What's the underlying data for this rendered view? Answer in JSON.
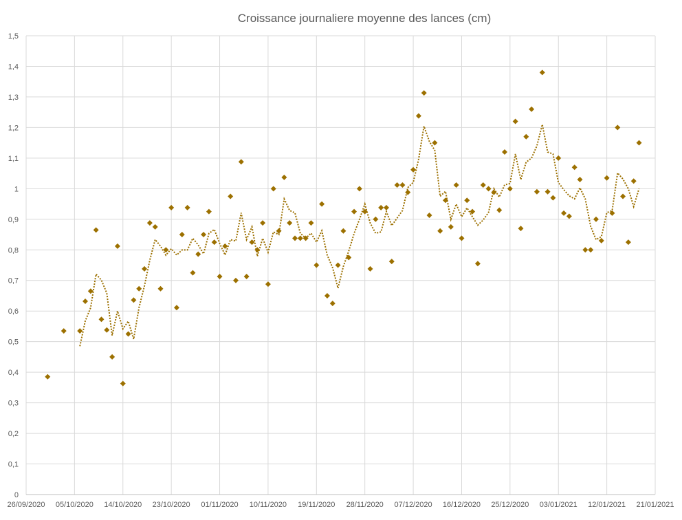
{
  "chart_data": {
    "type": "scatter",
    "title": "Croissance journaliere moyenne des lances (cm)",
    "xlabel": "",
    "ylabel": "",
    "xlim": [
      "2020-09-26",
      "2021-01-21"
    ],
    "ylim": [
      0,
      1.5
    ],
    "x_ticks": [
      "26/09/2020",
      "05/10/2020",
      "14/10/2020",
      "23/10/2020",
      "01/11/2020",
      "10/11/2020",
      "19/11/2020",
      "28/11/2020",
      "07/12/2020",
      "16/12/2020",
      "25/12/2020",
      "03/01/2021",
      "12/01/2021",
      "21/01/2021"
    ],
    "y_ticks": [
      "0",
      "0,1",
      "0,2",
      "0,3",
      "0,4",
      "0,5",
      "0,6",
      "0,7",
      "0,8",
      "0,9",
      "1",
      "1,1",
      "1,2",
      "1,3",
      "1,4",
      "1,5"
    ],
    "grid": true,
    "legend": "none",
    "marker_color": "#9C7000",
    "trendline": {
      "type": "moving average",
      "style": "dotted",
      "color": "#9C7000"
    },
    "points": [
      [
        "2020-09-30",
        0.385
      ],
      [
        "2020-10-03",
        0.535
      ],
      [
        "2020-10-06",
        0.535
      ],
      [
        "2020-10-07",
        0.632
      ],
      [
        "2020-10-08",
        0.665
      ],
      [
        "2020-10-09",
        0.865
      ],
      [
        "2020-10-10",
        0.573
      ],
      [
        "2020-10-11",
        0.538
      ],
      [
        "2020-10-12",
        0.45
      ],
      [
        "2020-10-13",
        0.812
      ],
      [
        "2020-10-14",
        0.363
      ],
      [
        "2020-10-15",
        0.525
      ],
      [
        "2020-10-16",
        0.636
      ],
      [
        "2020-10-17",
        0.673
      ],
      [
        "2020-10-18",
        0.738
      ],
      [
        "2020-10-19",
        0.888
      ],
      [
        "2020-10-20",
        0.875
      ],
      [
        "2020-10-21",
        0.673
      ],
      [
        "2020-10-22",
        0.8
      ],
      [
        "2020-10-23",
        0.938
      ],
      [
        "2020-10-24",
        0.611
      ],
      [
        "2020-10-25",
        0.85
      ],
      [
        "2020-10-26",
        0.938
      ],
      [
        "2020-10-27",
        0.725
      ],
      [
        "2020-10-28",
        0.786
      ],
      [
        "2020-10-29",
        0.85
      ],
      [
        "2020-10-30",
        0.925
      ],
      [
        "2020-10-31",
        0.825
      ],
      [
        "2020-11-01",
        0.713
      ],
      [
        "2020-11-02",
        0.812
      ],
      [
        "2020-11-03",
        0.975
      ],
      [
        "2020-11-04",
        0.7
      ],
      [
        "2020-11-05",
        1.088
      ],
      [
        "2020-11-06",
        0.713
      ],
      [
        "2020-11-07",
        0.825
      ],
      [
        "2020-11-08",
        0.8
      ],
      [
        "2020-11-09",
        0.888
      ],
      [
        "2020-11-10",
        0.688
      ],
      [
        "2020-11-11",
        1.0
      ],
      [
        "2020-11-12",
        0.862
      ],
      [
        "2020-11-13",
        1.037
      ],
      [
        "2020-11-14",
        0.888
      ],
      [
        "2020-11-15",
        0.838
      ],
      [
        "2020-11-16",
        0.838
      ],
      [
        "2020-11-17",
        0.838
      ],
      [
        "2020-11-18",
        0.888
      ],
      [
        "2020-11-19",
        0.75
      ],
      [
        "2020-11-20",
        0.95
      ],
      [
        "2020-11-21",
        0.65
      ],
      [
        "2020-11-22",
        0.625
      ],
      [
        "2020-11-23",
        0.75
      ],
      [
        "2020-11-24",
        0.862
      ],
      [
        "2020-11-25",
        0.775
      ],
      [
        "2020-11-26",
        0.925
      ],
      [
        "2020-11-27",
        1.0
      ],
      [
        "2020-11-28",
        0.925
      ],
      [
        "2020-11-29",
        0.738
      ],
      [
        "2020-11-30",
        0.9
      ],
      [
        "2020-12-01",
        0.938
      ],
      [
        "2020-12-02",
        0.938
      ],
      [
        "2020-12-03",
        0.762
      ],
      [
        "2020-12-04",
        1.012
      ],
      [
        "2020-12-05",
        1.012
      ],
      [
        "2020-12-06",
        0.988
      ],
      [
        "2020-12-07",
        1.062
      ],
      [
        "2020-12-08",
        1.238
      ],
      [
        "2020-12-09",
        1.313
      ],
      [
        "2020-12-10",
        0.913
      ],
      [
        "2020-12-11",
        1.15
      ],
      [
        "2020-12-12",
        0.862
      ],
      [
        "2020-12-13",
        0.962
      ],
      [
        "2020-12-14",
        0.875
      ],
      [
        "2020-12-15",
        1.012
      ],
      [
        "2020-12-16",
        0.838
      ],
      [
        "2020-12-17",
        0.962
      ],
      [
        "2020-12-18",
        0.925
      ],
      [
        "2020-12-19",
        0.755
      ],
      [
        "2020-12-20",
        1.012
      ],
      [
        "2020-12-21",
        1.0
      ],
      [
        "2020-12-22",
        0.988
      ],
      [
        "2020-12-23",
        0.93
      ],
      [
        "2020-12-24",
        1.12
      ],
      [
        "2020-12-25",
        1.0
      ],
      [
        "2020-12-26",
        1.22
      ],
      [
        "2020-12-27",
        0.87
      ],
      [
        "2020-12-28",
        1.17
      ],
      [
        "2020-12-29",
        1.26
      ],
      [
        "2020-12-30",
        0.99
      ],
      [
        "2020-12-31",
        1.38
      ],
      [
        "2021-01-01",
        0.99
      ],
      [
        "2021-01-02",
        0.97
      ],
      [
        "2021-01-03",
        1.1
      ],
      [
        "2021-01-04",
        0.92
      ],
      [
        "2021-01-05",
        0.91
      ],
      [
        "2021-01-06",
        1.07
      ],
      [
        "2021-01-07",
        1.03
      ],
      [
        "2021-01-08",
        0.8
      ],
      [
        "2021-01-09",
        0.8
      ],
      [
        "2021-01-10",
        0.9
      ],
      [
        "2021-01-11",
        0.83
      ],
      [
        "2021-01-12",
        1.035
      ],
      [
        "2021-01-13",
        0.92
      ],
      [
        "2021-01-14",
        1.2
      ],
      [
        "2021-01-15",
        0.975
      ],
      [
        "2021-01-16",
        0.825
      ],
      [
        "2021-01-17",
        1.025
      ],
      [
        "2021-01-18",
        1.15
      ]
    ]
  }
}
